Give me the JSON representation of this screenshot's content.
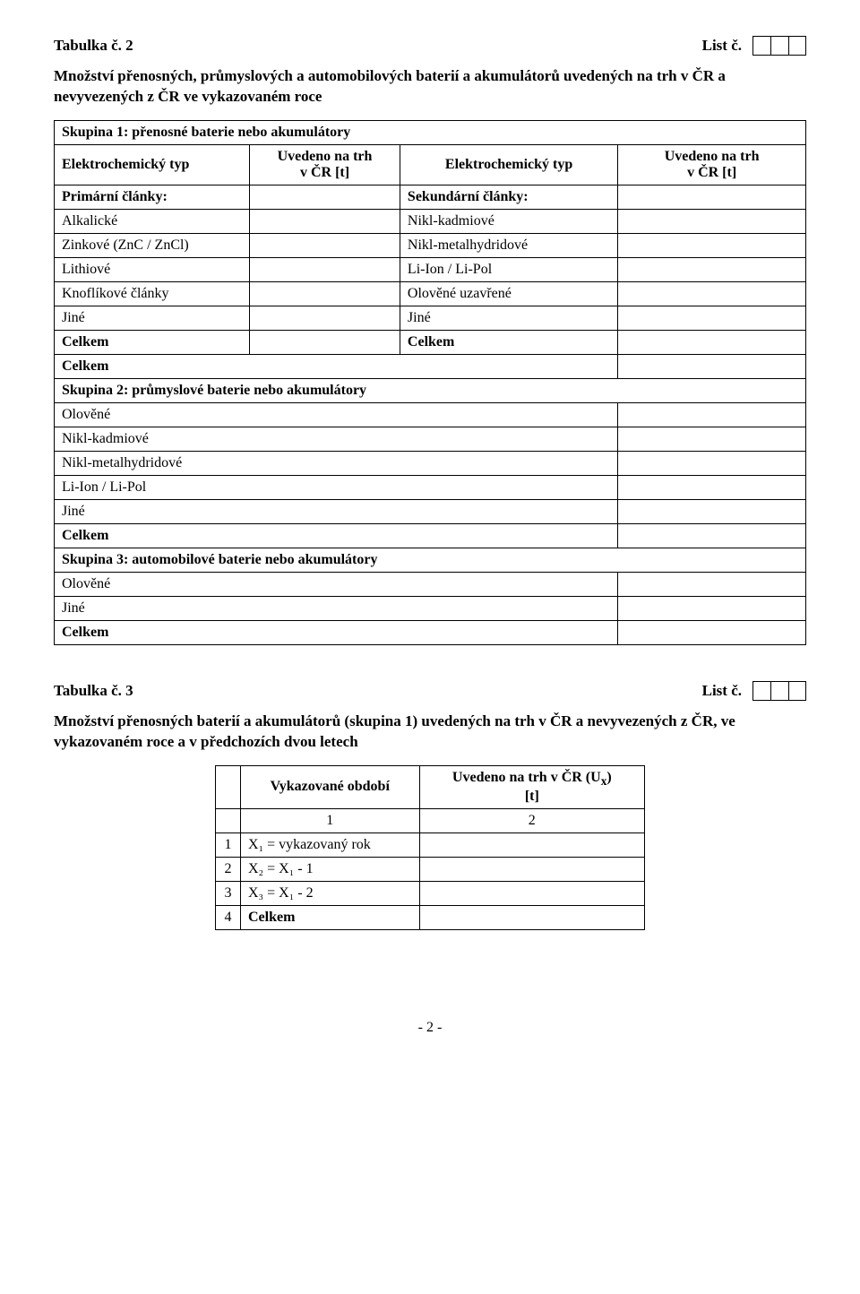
{
  "t2": {
    "title": "Tabulka č. 2",
    "list_label": "List č.",
    "subtitle": "Množství přenosných, průmyslových a automobilových baterií a akumulátorů uvedených na trh v ČR a nevyvezených z ČR ve vykazovaném roce",
    "s1_header": "Skupina 1: přenosné baterie nebo akumulátory",
    "h_etyp": "Elektrochemický typ",
    "h_uved": "Uvedeno na trh\nv ČR [t]",
    "r_prim": "Primární články:",
    "r_sek": "Sekundární články:",
    "r_alk": "Alkalické",
    "r_nikd": "Nikl-kadmiové",
    "r_zn": "Zinkové (ZnC / ZnCl)",
    "r_nimh": "Nikl-metalhydridové",
    "r_li": "Lithiové",
    "r_liion": "Li-Ion / Li-Pol",
    "r_knof": "Knoflíkové články",
    "r_olovuz": "Olověné uzavřené",
    "r_jine": "Jiné",
    "r_celkem": "Celkem",
    "s2_header": "Skupina 2: průmyslové baterie nebo akumulátory",
    "s2_olov": "Olověné",
    "s2_nikd": "Nikl-kadmiové",
    "s2_nimh": "Nikl-metalhydridové",
    "s2_liion": "Li-Ion / Li-Pol",
    "s2_jine": "Jiné",
    "s2_celkem": "Celkem",
    "s3_header": "Skupina 3: automobilové baterie nebo akumulátory",
    "s3_olov": "Olověné",
    "s3_jine": "Jiné",
    "s3_celkem": "Celkem"
  },
  "t3": {
    "title": "Tabulka č. 3",
    "list_label": "List č.",
    "subtitle": "Množství přenosných baterií a akumulátorů (skupina 1) uvedených na trh v ČR a nevyvezených z ČR, ve vykazovaném roce a v předchozích dvou letech",
    "h_vyk": "Vykazované období",
    "h_ux_1": "Uvedeno na trh v ČR (U",
    "h_ux_sub": "x",
    "h_ux_2": ")\n[t]",
    "c1": "1",
    "c2": "2",
    "r1n": "1",
    "r1": "X₁ = vykazovaný rok",
    "r2n": "2",
    "r2": "X₂ = X₁ - 1",
    "r3n": "3",
    "r3": "X₃ = X₁ - 2",
    "r4n": "4",
    "r4": "Celkem"
  },
  "page_num": "- 2 -"
}
